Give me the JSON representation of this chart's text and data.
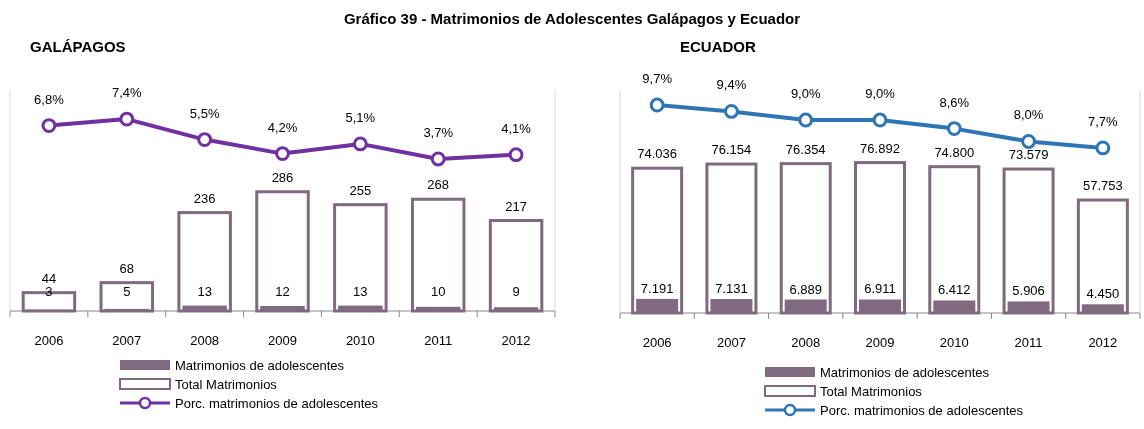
{
  "chart_data": [
    {
      "type": "bar",
      "title": "Gráfico 39 -  Matrimonios de Adolescentes Galápagos y Ecuador",
      "subtitle": "GALÁPAGOS",
      "categories": [
        "2006",
        "2007",
        "2008",
        "2009",
        "2010",
        "2011",
        "2012"
      ],
      "ylim": [
        0,
        530
      ],
      "y2lim": [
        -10.4,
        10.1
      ],
      "tick_labels": "x",
      "legend": "bottom",
      "marker": "circle",
      "series": [
        {
          "name": "Total Matrimonios",
          "color": "#ffffff",
          "values": [
            44,
            68,
            236,
            286,
            255,
            268,
            217
          ],
          "value_labels": [
            "44",
            "68",
            "236",
            "286",
            "255",
            "268",
            "217"
          ]
        },
        {
          "name": "Matrimonios de adolescentes",
          "color": "#7f6a7f",
          "values": [
            3,
            5,
            13,
            12,
            13,
            10,
            9
          ],
          "value_labels": [
            "3",
            "5",
            "13",
            "12",
            "13",
            "10",
            "9"
          ]
        },
        {
          "name": "Porc. matrimonios de adolescentes",
          "type": "line",
          "axis": "y2",
          "color": "#7030a0",
          "values": [
            6.8,
            7.4,
            5.5,
            4.2,
            5.1,
            3.7,
            4.1
          ],
          "value_labels": [
            "6,8%",
            "7,4%",
            "5,5%",
            "4,2%",
            "5,1%",
            "3,7%",
            "4,1%"
          ]
        }
      ]
    },
    {
      "type": "bar",
      "subtitle": "ECUADOR",
      "categories": [
        "2006",
        "2007",
        "2008",
        "2009",
        "2010",
        "2011",
        "2012"
      ],
      "ylim": [
        0,
        114000
      ],
      "y2lim": [
        0,
        10.4
      ],
      "tick_labels": "x",
      "legend": "bottom",
      "marker": "circle",
      "series": [
        {
          "name": "Total Matrimonios",
          "color": "#ffffff",
          "values": [
            74036,
            76154,
            76354,
            76892,
            74800,
            73579,
            57753
          ],
          "value_labels": [
            "74.036",
            "76.154",
            "76.354",
            "76.892",
            "74.800",
            "73.579",
            "57.753"
          ]
        },
        {
          "name": "Matrimonios de adolescentes",
          "color": "#7f6a7f",
          "values": [
            7191,
            7131,
            6889,
            6911,
            6412,
            5906,
            4450
          ],
          "value_labels": [
            "7.191",
            "7.131",
            "6.889",
            "6.911",
            "6.412",
            "5.906",
            "4.450"
          ]
        },
        {
          "name": "Porc. matrimonios de adolescentes",
          "type": "line",
          "axis": "y2",
          "color": "#2e75b6",
          "values": [
            9.7,
            9.4,
            9.0,
            9.0,
            8.6,
            8.0,
            7.7
          ],
          "value_labels": [
            "9,7%",
            "9,4%",
            "9,0%",
            "9,0%",
            "8,6%",
            "8,0%",
            "7,7%"
          ]
        }
      ]
    }
  ]
}
